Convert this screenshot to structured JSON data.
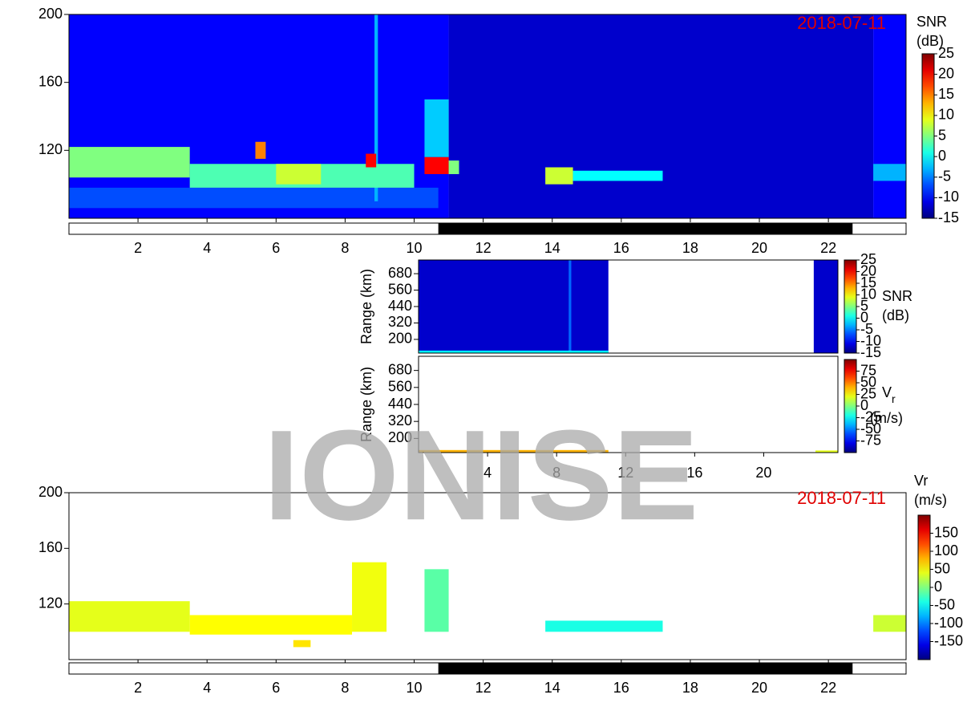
{
  "watermark": "IONISE",
  "chart_data": [
    {
      "type": "heatmap",
      "date": "2018-07-11",
      "clabel": [
        "SNR",
        "(dB)"
      ],
      "xlim": [
        0,
        24.25
      ],
      "xticks": [
        2,
        4,
        6,
        8,
        10,
        12,
        14,
        16,
        18,
        20,
        22
      ],
      "ylim": [
        80,
        200
      ],
      "yticks": [
        120,
        160,
        200
      ],
      "clim": [
        -15,
        25
      ],
      "cticks": [
        25,
        20,
        15,
        10,
        5,
        0,
        -5,
        -10,
        -15
      ],
      "colormap": "jet",
      "night": [
        10.7,
        22.7
      ],
      "patches": [
        {
          "x": [
            0,
            11
          ],
          "y": [
            80,
            200
          ],
          "value": -10
        },
        {
          "x": [
            11,
            23.3
          ],
          "y": [
            80,
            200
          ],
          "value": -12
        },
        {
          "x": [
            23.3,
            24.25
          ],
          "y": [
            80,
            200
          ],
          "value": -10
        },
        {
          "x": [
            0,
            10.7
          ],
          "y": [
            86,
            98
          ],
          "value": -7
        },
        {
          "x": [
            8.85,
            8.95
          ],
          "y": [
            90,
            200
          ],
          "value": -3
        },
        {
          "x": [
            0,
            3.5
          ],
          "y": [
            104,
            122
          ],
          "value": 5
        },
        {
          "x": [
            3.5,
            10
          ],
          "y": [
            98,
            112
          ],
          "value": 3
        },
        {
          "x": [
            6,
            7.3
          ],
          "y": [
            100,
            112
          ],
          "value": 8
        },
        {
          "x": [
            5.4,
            5.7
          ],
          "y": [
            115,
            125
          ],
          "value": 15
        },
        {
          "x": [
            8.6,
            8.9
          ],
          "y": [
            110,
            118
          ],
          "value": 20
        },
        {
          "x": [
            10.3,
            11
          ],
          "y": [
            116,
            150
          ],
          "value": -2
        },
        {
          "x": [
            10.3,
            11
          ],
          "y": [
            106,
            116
          ],
          "value": 20
        },
        {
          "x": [
            11,
            11.3
          ],
          "y": [
            106,
            114
          ],
          "value": 5
        },
        {
          "x": [
            13.8,
            14.6
          ],
          "y": [
            100,
            110
          ],
          "value": 8
        },
        {
          "x": [
            14.6,
            17.2
          ],
          "y": [
            102,
            108
          ],
          "value": 0
        },
        {
          "x": [
            23.3,
            24.25
          ],
          "y": [
            102,
            112
          ],
          "value": -3
        }
      ]
    },
    {
      "type": "heatmap",
      "ylabel": "Range (km)",
      "clabel": [
        "SNR",
        "(dB)"
      ],
      "xlim": [
        0,
        24.3
      ],
      "ylim": [
        100,
        780
      ],
      "yticks": [
        200,
        320,
        440,
        560,
        680
      ],
      "clim": [
        -15,
        25
      ],
      "cticks": [
        25,
        20,
        15,
        10,
        5,
        0,
        -5,
        -10,
        -15
      ],
      "colormap": "jet",
      "patches": [
        {
          "x": [
            0,
            11
          ],
          "y": [
            100,
            780
          ],
          "value": -12
        },
        {
          "x": [
            22.9,
            24.3
          ],
          "y": [
            100,
            780
          ],
          "value": -12
        },
        {
          "x": [
            8.7,
            8.85
          ],
          "y": [
            100,
            780
          ],
          "value": -6
        },
        {
          "x": [
            0,
            11
          ],
          "y": [
            100,
            118
          ],
          "value": 0
        }
      ]
    },
    {
      "type": "heatmap",
      "ylabel": "Range (km)",
      "clabel": [
        "V",
        "(m/s)"
      ],
      "clabel_sub": "r",
      "xlim": [
        0,
        24.3
      ],
      "xticks": [
        4,
        8,
        12,
        16,
        20
      ],
      "ylim": [
        100,
        780
      ],
      "yticks": [
        200,
        320,
        440,
        560,
        680
      ],
      "clim": [
        -100,
        100
      ],
      "cticks": [
        75,
        50,
        25,
        0,
        -25,
        -50,
        -75
      ],
      "colormap": "jet",
      "patches": [
        {
          "x": [
            0,
            11
          ],
          "y": [
            100,
            118
          ],
          "value": 40
        },
        {
          "x": [
            23,
            24.3
          ],
          "y": [
            100,
            115
          ],
          "value": 20
        }
      ]
    },
    {
      "type": "heatmap",
      "date": "2018-07-11",
      "clabel": [
        "Vr",
        "(m/s)"
      ],
      "xlim": [
        0,
        24.25
      ],
      "xticks": [
        2,
        4,
        6,
        8,
        10,
        12,
        14,
        16,
        18,
        20,
        22
      ],
      "ylim": [
        80,
        200
      ],
      "yticks": [
        120,
        160,
        200
      ],
      "clim": [
        -200,
        200
      ],
      "cticks": [
        150,
        100,
        50,
        0,
        -50,
        -100,
        -150
      ],
      "colormap": "jet",
      "night": [
        10.7,
        22.7
      ],
      "patches": [
        {
          "x": [
            0,
            3.5
          ],
          "y": [
            100,
            122
          ],
          "value": 40
        },
        {
          "x": [
            3.5,
            8.2
          ],
          "y": [
            98,
            112
          ],
          "value": 50
        },
        {
          "x": [
            8.2,
            9.2
          ],
          "y": [
            100,
            150
          ],
          "value": 45
        },
        {
          "x": [
            6.5,
            7
          ],
          "y": [
            89,
            94
          ],
          "value": 60
        },
        {
          "x": [
            10.3,
            11
          ],
          "y": [
            100,
            145
          ],
          "value": -15
        },
        {
          "x": [
            13.8,
            17.2
          ],
          "y": [
            100,
            108
          ],
          "value": -40
        },
        {
          "x": [
            23.3,
            24.25
          ],
          "y": [
            100,
            112
          ],
          "value": 30
        }
      ]
    }
  ]
}
